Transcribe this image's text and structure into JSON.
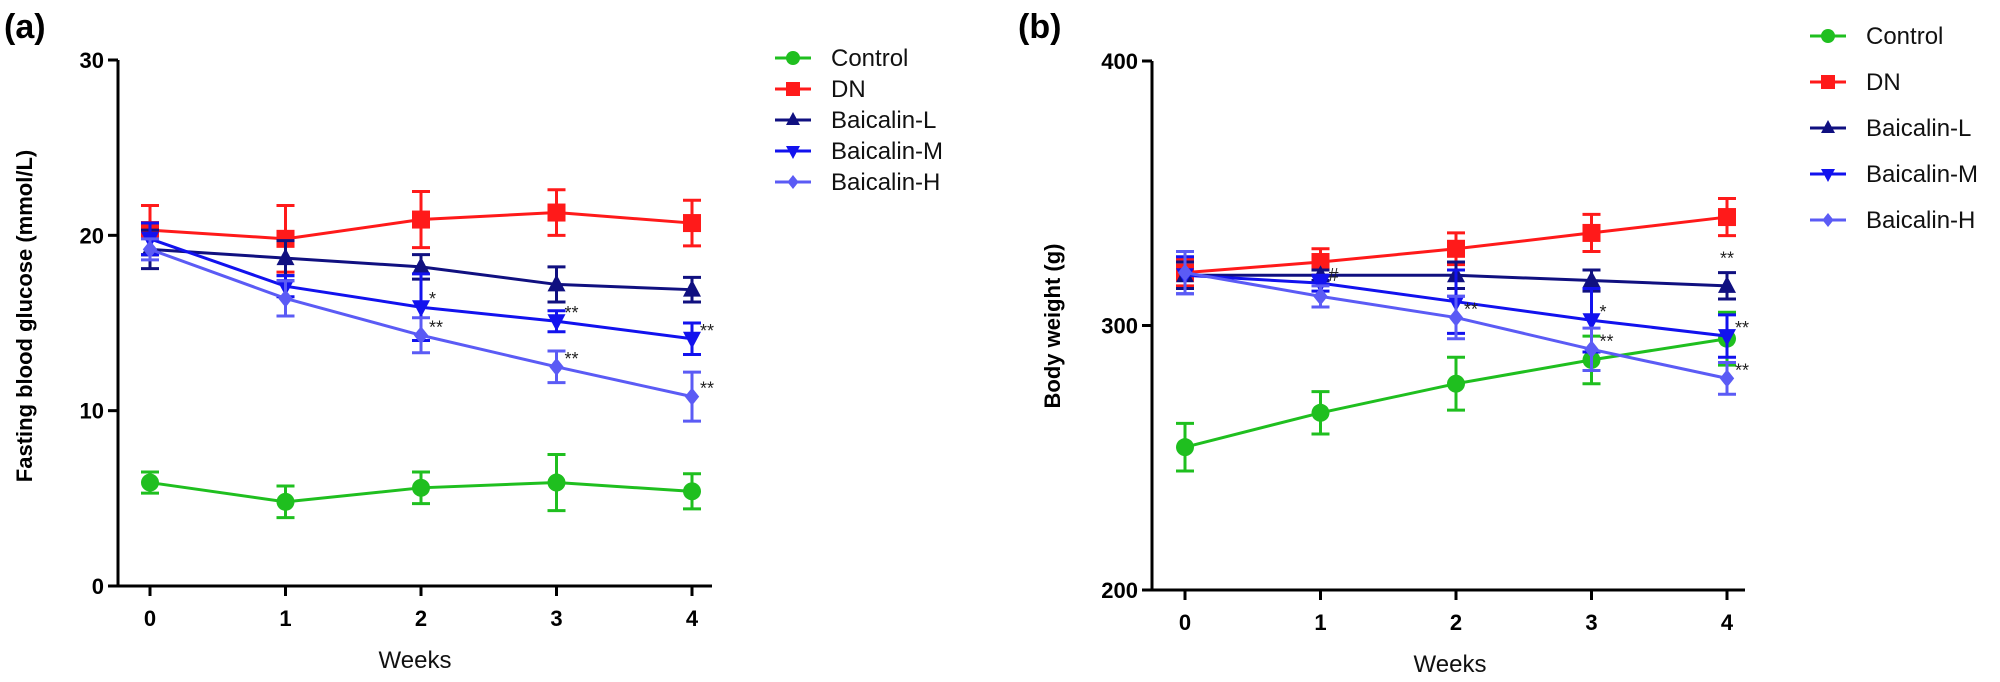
{
  "chart_data": [
    {
      "type": "line",
      "panel_label": "(a)",
      "title": "",
      "xlabel": "Weeks",
      "ylabel": "Fasting blood glucose (mmol/L)",
      "x": [
        0,
        1,
        2,
        3,
        4
      ],
      "xticks": [
        "0",
        "1",
        "2",
        "3",
        "4"
      ],
      "yticks": [
        "0",
        "10",
        "20",
        "30"
      ],
      "ylim": [
        0,
        30
      ],
      "grid": false,
      "legend_position": "top-right",
      "series": [
        {
          "name": "Control",
          "color": "#1fbf1f",
          "marker": "circle",
          "values": [
            5.9,
            4.8,
            5.6,
            5.9,
            5.4
          ],
          "errors": [
            0.6,
            0.9,
            0.9,
            1.6,
            1.0
          ]
        },
        {
          "name": "DN",
          "color": "#ff1a1a",
          "marker": "square",
          "values": [
            20.3,
            19.8,
            20.9,
            21.3,
            20.7
          ],
          "errors": [
            1.4,
            1.9,
            1.6,
            1.3,
            1.3
          ]
        },
        {
          "name": "Baicalin-L",
          "color": "#101080",
          "marker": "triangle-up",
          "values": [
            19.2,
            18.7,
            18.2,
            17.2,
            16.9
          ],
          "errors": [
            1.1,
            1.0,
            0.7,
            1.0,
            0.7
          ]
        },
        {
          "name": "Baicalin-M",
          "color": "#1212ee",
          "marker": "triangle-down",
          "values": [
            19.8,
            17.1,
            15.9,
            15.1,
            14.1
          ],
          "errors": [
            0.9,
            0.6,
            1.9,
            0.6,
            0.9
          ]
        },
        {
          "name": "Baicalin-H",
          "color": "#5b5bf5",
          "marker": "diamond",
          "values": [
            19.2,
            16.4,
            14.3,
            12.5,
            10.8
          ],
          "errors": [
            0.6,
            1.0,
            1.0,
            0.9,
            1.4
          ]
        }
      ],
      "annotations": [
        {
          "series": "Baicalin-M",
          "x": 2,
          "text": "*"
        },
        {
          "series": "Baicalin-H",
          "x": 2,
          "text": "**"
        },
        {
          "series": "Baicalin-M",
          "x": 3,
          "text": "**"
        },
        {
          "series": "Baicalin-H",
          "x": 3,
          "text": "**"
        },
        {
          "series": "Baicalin-M",
          "x": 4,
          "text": "**"
        },
        {
          "series": "Baicalin-H",
          "x": 4,
          "text": "**"
        }
      ]
    },
    {
      "type": "line",
      "panel_label": "(b)",
      "title": "",
      "xlabel": "Weeks",
      "ylabel": "Body weight (g)",
      "x": [
        0,
        1,
        2,
        3,
        4
      ],
      "xticks": [
        "0",
        "1",
        "2",
        "3",
        "4"
      ],
      "yticks": [
        "200",
        "300",
        "400"
      ],
      "ylim": [
        200,
        400
      ],
      "grid": false,
      "legend_position": "top-right",
      "series": [
        {
          "name": "Control",
          "color": "#1fbf1f",
          "marker": "circle",
          "values": [
            254,
            267,
            278,
            287,
            295
          ],
          "errors": [
            9,
            8,
            10,
            9,
            10
          ]
        },
        {
          "name": "DN",
          "color": "#ff1a1a",
          "marker": "square",
          "values": [
            320,
            324,
            329,
            335,
            341
          ],
          "errors": [
            5,
            5,
            6,
            7,
            7
          ]
        },
        {
          "name": "Baicalin-L",
          "color": "#101080",
          "marker": "triangle-up",
          "values": [
            319,
            319,
            319,
            317,
            315
          ],
          "errors": [
            5,
            2,
            5,
            4,
            5
          ]
        },
        {
          "name": "Baicalin-M",
          "color": "#1212ee",
          "marker": "triangle-down",
          "values": [
            319,
            316,
            309,
            302,
            296
          ],
          "errors": [
            7,
            3,
            12,
            12,
            8
          ]
        },
        {
          "name": "Baicalin-H",
          "color": "#5b5bf5",
          "marker": "diamond",
          "values": [
            320,
            311,
            303,
            291,
            280
          ],
          "errors": [
            8,
            4,
            8,
            8,
            6
          ]
        }
      ],
      "annotations": [
        {
          "series": "Baicalin-M",
          "x": 1,
          "text": "#"
        },
        {
          "series": "Baicalin-H",
          "x": 2,
          "text": "**"
        },
        {
          "series": "Baicalin-M",
          "x": 3,
          "text": "*"
        },
        {
          "series": "Baicalin-H",
          "x": 3,
          "text": "**"
        },
        {
          "series": "Baicalin-L",
          "x": 4,
          "text": "**",
          "placement": "above"
        },
        {
          "series": "Baicalin-M",
          "x": 4,
          "text": "**"
        },
        {
          "series": "Baicalin-H",
          "x": 4,
          "text": "**"
        }
      ]
    }
  ]
}
